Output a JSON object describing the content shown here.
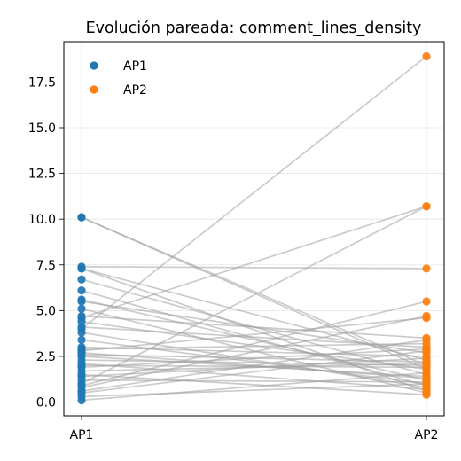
{
  "chart_data": {
    "type": "scatter",
    "title": "Evolución pareada: comment_lines_density",
    "xlabel": "",
    "ylabel": "",
    "categories": [
      "AP1",
      "AP2"
    ],
    "ylim": [
      -0.75,
      19.7
    ],
    "yticks": [
      "0.0",
      "2.5",
      "5.0",
      "7.5",
      "10.0",
      "12.5",
      "15.0",
      "17.5"
    ],
    "grid": true,
    "legend_position": "top-left",
    "series": [
      {
        "name": "AP1",
        "color": "#1f77b4"
      },
      {
        "name": "AP2",
        "color": "#ff7f0e"
      }
    ],
    "pair_line_color": "#a0a0a0",
    "pairs": [
      [
        10.1,
        2.0
      ],
      [
        10.1,
        1.8
      ],
      [
        7.4,
        7.3
      ],
      [
        7.3,
        2.3
      ],
      [
        7.3,
        0.6
      ],
      [
        6.7,
        1.5
      ],
      [
        6.1,
        0.9
      ],
      [
        5.6,
        1.2
      ],
      [
        5.5,
        2.7
      ],
      [
        5.1,
        0.5
      ],
      [
        4.7,
        3.5
      ],
      [
        4.6,
        10.7
      ],
      [
        4.4,
        1.8
      ],
      [
        4.1,
        3.0
      ],
      [
        4.0,
        18.9
      ],
      [
        3.8,
        0.8
      ],
      [
        3.4,
        1.0
      ],
      [
        3.0,
        2.5
      ],
      [
        2.9,
        3.2
      ],
      [
        2.8,
        4.6
      ],
      [
        2.7,
        1.3
      ],
      [
        2.6,
        2.2
      ],
      [
        2.5,
        1.4
      ],
      [
        2.3,
        2.0
      ],
      [
        2.1,
        0.7
      ],
      [
        2.0,
        1.9
      ],
      [
        1.9,
        2.9
      ],
      [
        1.7,
        2.1
      ],
      [
        1.5,
        0.4
      ],
      [
        1.4,
        2.4
      ],
      [
        1.2,
        1.1
      ],
      [
        1.0,
        10.7
      ],
      [
        0.9,
        5.5
      ],
      [
        0.8,
        4.7
      ],
      [
        0.6,
        3.4
      ],
      [
        0.5,
        2.8
      ],
      [
        0.3,
        1.0
      ],
      [
        0.1,
        1.6
      ]
    ]
  }
}
